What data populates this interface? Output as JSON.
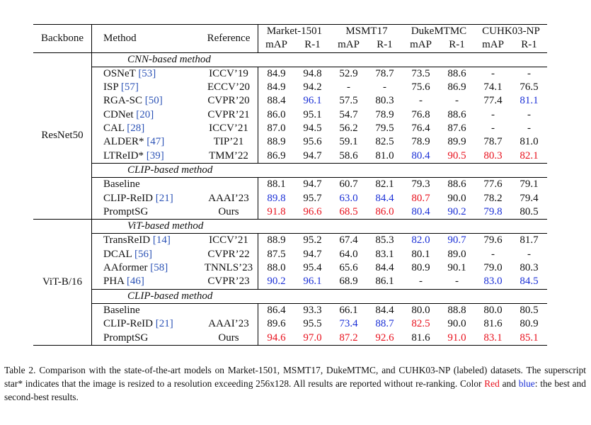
{
  "headers": {
    "backbone": "Backbone",
    "method": "Method",
    "reference": "Reference",
    "datasets": [
      "Market-1501",
      "MSMT17",
      "DukeMTMC",
      "CUHK03-NP"
    ],
    "metrics": [
      "mAP",
      "R-1",
      "mAP",
      "R-1",
      "mAP",
      "R-1",
      "mAP",
      "R-1"
    ]
  },
  "colors": {
    "best": "#e8101c",
    "second": "#1a2fd6",
    "citation": "#2c53b6"
  },
  "blocks": [
    {
      "backbone": "ResNet50",
      "groups": [
        {
          "title": "CNN-based method",
          "rows": [
            {
              "name": "OSNeT",
              "cite": "[53]",
              "ref": "ICCV’19",
              "vals": [
                "84.9",
                "94.8",
                "52.9",
                "78.7",
                "73.5",
                "88.6",
                "-",
                "-"
              ],
              "colors": [
                "",
                "",
                "",
                "",
                "",
                "",
                "",
                ""
              ]
            },
            {
              "name": "ISP",
              "cite": "[57]",
              "ref": "ECCV’20",
              "vals": [
                "84.9",
                "94.2",
                "-",
                "-",
                "75.6",
                "86.9",
                "74.1",
                "76.5"
              ],
              "colors": [
                "",
                "",
                "",
                "",
                "",
                "",
                "",
                ""
              ]
            },
            {
              "name": "RGA-SC",
              "cite": "[50]",
              "ref": "CVPR’20",
              "vals": [
                "88.4",
                "96.1",
                "57.5",
                "80.3",
                "-",
                "-",
                "77.4",
                "81.1"
              ],
              "colors": [
                "",
                "blue",
                "",
                "",
                "",
                "",
                "",
                "blue"
              ]
            },
            {
              "name": "CDNet",
              "cite": "[20]",
              "ref": "CVPR’21",
              "vals": [
                "86.0",
                "95.1",
                "54.7",
                "78.9",
                "76.8",
                "88.6",
                "-",
                "-"
              ],
              "colors": [
                "",
                "",
                "",
                "",
                "",
                "",
                "",
                ""
              ]
            },
            {
              "name": "CAL",
              "cite": "[28]",
              "ref": "ICCV’21",
              "vals": [
                "87.0",
                "94.5",
                "56.2",
                "79.5",
                "76.4",
                "87.6",
                "-",
                "-"
              ],
              "colors": [
                "",
                "",
                "",
                "",
                "",
                "",
                "",
                ""
              ]
            },
            {
              "name": "ALDER*",
              "cite": "[47]",
              "ref": "TIP’21",
              "vals": [
                "88.9",
                "95.6",
                "59.1",
                "82.5",
                "78.9",
                "89.9",
                "78.7",
                "81.0"
              ],
              "colors": [
                "",
                "",
                "",
                "",
                "",
                "",
                "",
                ""
              ]
            },
            {
              "name": "LTReID*",
              "cite": "[39]",
              "ref": "TMM’22",
              "vals": [
                "86.9",
                "94.7",
                "58.6",
                "81.0",
                "80.4",
                "90.5",
                "80.3",
                "82.1"
              ],
              "colors": [
                "",
                "",
                "",
                "",
                "blue",
                "red",
                "red",
                "red"
              ]
            }
          ]
        },
        {
          "title": "CLIP-based method",
          "rows": [
            {
              "name": "Baseline",
              "cite": "",
              "ref": "",
              "vals": [
                "88.1",
                "94.7",
                "60.7",
                "82.1",
                "79.3",
                "88.6",
                "77.6",
                "79.1"
              ],
              "colors": [
                "",
                "",
                "",
                "",
                "",
                "",
                "",
                ""
              ]
            },
            {
              "name": "CLIP-ReID",
              "cite": "[21]",
              "ref": "AAAI’23",
              "vals": [
                "89.8",
                "95.7",
                "63.0",
                "84.4",
                "80.7",
                "90.0",
                "78.2",
                "79.4"
              ],
              "colors": [
                "blue",
                "",
                "blue",
                "blue",
                "red",
                "",
                "",
                ""
              ]
            },
            {
              "name": "PromptSG",
              "cite": "",
              "ref": "Ours",
              "vals": [
                "91.8",
                "96.6",
                "68.5",
                "86.0",
                "80.4",
                "90.2",
                "79.8",
                "80.5"
              ],
              "colors": [
                "red",
                "red",
                "red",
                "red",
                "blue",
                "blue",
                "blue",
                ""
              ]
            }
          ]
        }
      ]
    },
    {
      "backbone": "ViT-B/16",
      "groups": [
        {
          "title": "ViT-based method",
          "rows": [
            {
              "name": "TransReID",
              "cite": "[14]",
              "ref": "ICCV’21",
              "vals": [
                "88.9",
                "95.2",
                "67.4",
                "85.3",
                "82.0",
                "90.7",
                "79.6",
                "81.7"
              ],
              "colors": [
                "",
                "",
                "",
                "",
                "blue",
                "blue",
                "",
                ""
              ]
            },
            {
              "name": "DCAL",
              "cite": "[56]",
              "ref": "CVPR’22",
              "vals": [
                "87.5",
                "94.7",
                "64.0",
                "83.1",
                "80.1",
                "89.0",
                "-",
                "-"
              ],
              "colors": [
                "",
                "",
                "",
                "",
                "",
                "",
                "",
                ""
              ]
            },
            {
              "name": "AAformer",
              "cite": "[58]",
              "ref": "TNNLS’23",
              "vals": [
                "88.0",
                "95.4",
                "65.6",
                "84.4",
                "80.9",
                "90.1",
                "79.0",
                "80.3"
              ],
              "colors": [
                "",
                "",
                "",
                "",
                "",
                "",
                "",
                ""
              ]
            },
            {
              "name": "PHA",
              "cite": "[46]",
              "ref": "CVPR’23",
              "vals": [
                "90.2",
                "96.1",
                "68.9",
                "86.1",
                "-",
                "-",
                "83.0",
                "84.5"
              ],
              "colors": [
                "blue",
                "blue",
                "",
                "",
                "",
                "",
                "blue",
                "blue"
              ]
            }
          ]
        },
        {
          "title": "CLIP-based method",
          "rows": [
            {
              "name": "Baseline",
              "cite": "",
              "ref": "",
              "vals": [
                "86.4",
                "93.3",
                "66.1",
                "84.4",
                "80.0",
                "88.8",
                "80.0",
                "80.5"
              ],
              "colors": [
                "",
                "",
                "",
                "",
                "",
                "",
                "",
                ""
              ]
            },
            {
              "name": "CLIP-ReID",
              "cite": "[21]",
              "ref": "AAAI’23",
              "vals": [
                "89.6",
                "95.5",
                "73.4",
                "88.7",
                "82.5",
                "90.0",
                "81.6",
                "80.9"
              ],
              "colors": [
                "",
                "",
                "blue",
                "blue",
                "red",
                "",
                "",
                ""
              ]
            },
            {
              "name": "PromptSG",
              "cite": "",
              "ref": "Ours",
              "vals": [
                "94.6",
                "97.0",
                "87.2",
                "92.6",
                "81.6",
                "91.0",
                "83.1",
                "85.1"
              ],
              "colors": [
                "red",
                "red",
                "red",
                "red",
                "",
                "red",
                "red",
                "red"
              ]
            }
          ]
        }
      ]
    }
  ],
  "caption": {
    "main": "Table 2. Comparison with the state-of-the-art models on Market-1501, MSMT17, DukeMTMC, and CUHK03-NP (labeled) datasets. The superscript star* indicates that the image is resized to a resolution exceeding 256x128. All results are reported without re-ranking. Color ",
    "red_word": "Red",
    "and_word": " and ",
    "blue_word": "blue",
    "tail": ": the best and second-best results."
  }
}
